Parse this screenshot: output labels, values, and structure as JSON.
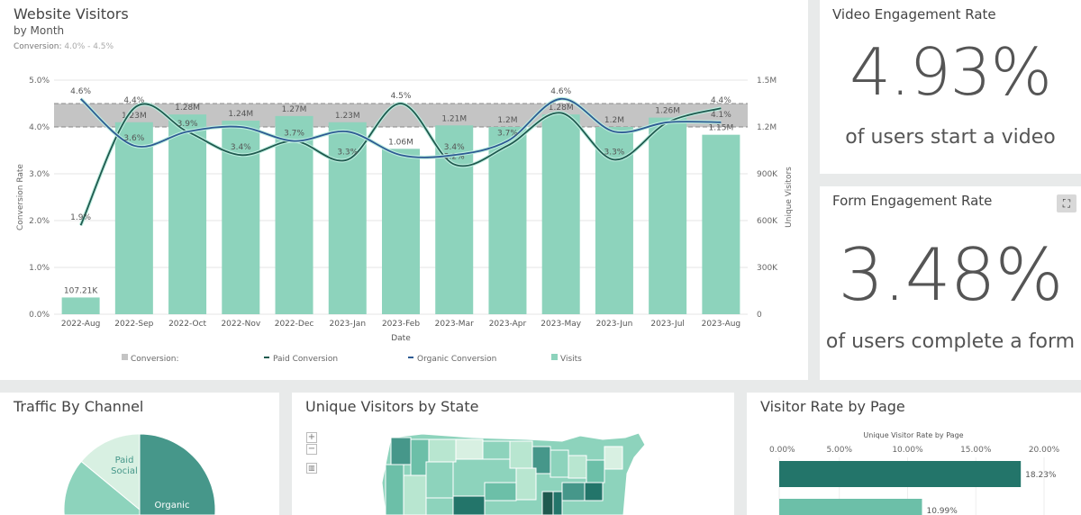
{
  "main": {
    "title": "Website Visitors",
    "subtitle": "by Month",
    "conversion_label": "Conversion:",
    "conversion_range": "4.0% - 4.5%"
  },
  "chart_data": {
    "type": "bar+line",
    "title": "Website Visitors",
    "xlabel": "Date",
    "ylabel_left": "Conversion Rate",
    "ylabel_right": "Unique Visitors",
    "categories": [
      "2022-Aug",
      "2022-Sep",
      "2022-Oct",
      "2022-Nov",
      "2022-Dec",
      "2023-Jan",
      "2023-Feb",
      "2023-Mar",
      "2023-Apr",
      "2023-May",
      "2023-Jun",
      "2023-Jul",
      "2023-Aug"
    ],
    "y_left_ticks": [
      "0.0%",
      "1.0%",
      "2.0%",
      "3.0%",
      "4.0%",
      "5.0%"
    ],
    "ylim_left": [
      0,
      5
    ],
    "y_right_ticks": [
      "0",
      "300K",
      "600K",
      "900K",
      "1.2M",
      "1.5M"
    ],
    "ylim_right": [
      0,
      1500000
    ],
    "band": {
      "name": "Conversion:",
      "range": [
        4.0,
        4.5
      ]
    },
    "visits": {
      "name": "Visits",
      "values": [
        107210,
        1230000,
        1280000,
        1240000,
        1270000,
        1230000,
        1060000,
        1210000,
        1200000,
        1280000,
        1200000,
        1260000,
        1150000
      ],
      "labels": [
        "107.21K",
        "1.23M",
        "1.28M",
        "1.24M",
        "1.27M",
        "1.23M",
        "1.06M",
        "1.21M",
        "1.2M",
        "1.28M",
        "1.2M",
        "1.26M",
        "1.15M"
      ]
    },
    "series": [
      {
        "name": "Paid Conversion",
        "color": "#1f5a4f",
        "values": [
          1.9,
          4.4,
          3.9,
          3.4,
          3.7,
          3.3,
          4.5,
          3.2,
          3.6,
          4.3,
          3.3,
          4.1,
          4.4
        ],
        "labels": [
          "1.9%",
          "4.4%",
          "",
          "3.4%",
          "",
          "3.3%",
          "4.5%",
          "3.2%",
          "",
          "",
          "3.3%",
          "",
          "4.4%"
        ]
      },
      {
        "name": "Organic Conversion",
        "color": "#2d5b93",
        "values": [
          4.6,
          3.6,
          3.9,
          4.0,
          3.7,
          3.9,
          3.4,
          3.4,
          3.7,
          4.6,
          3.9,
          4.1,
          4.1
        ],
        "labels": [
          "4.6%",
          "3.6%",
          "3.9%",
          "",
          "3.7%",
          "",
          "",
          "3.4%",
          "3.7%",
          "4.6%",
          "",
          "",
          "4.1%"
        ]
      }
    ],
    "legend": [
      "Conversion:",
      "Paid Conversion",
      "Organic Conversion",
      "Visits"
    ],
    "colors": {
      "bar": "#8dd3bc",
      "band": "#c4c4c4"
    }
  },
  "video": {
    "title": "Video Engagement Rate",
    "value": "4.93%",
    "caption": "of users start a video"
  },
  "form": {
    "title": "Form Engagement Rate",
    "value": "3.48%",
    "caption": "of users complete a form"
  },
  "traffic": {
    "title": "Traffic By Channel",
    "slices": [
      {
        "label": "Organic",
        "value": 50,
        "color": "#46978a"
      },
      {
        "label": "",
        "value": 36,
        "color": "#8dd3bc"
      },
      {
        "label": "Paid Social",
        "value": 14,
        "color": "#d8f0e2"
      }
    ]
  },
  "states": {
    "title": "Unique Visitors by State",
    "zoom_in": "+",
    "zoom_out": "−"
  },
  "pages": {
    "title": "Visitor Rate by Page",
    "chart_title": "Unique Visitor Rate by Page",
    "ticks": [
      "0.00%",
      "5.00%",
      "10.00%",
      "15.00%",
      "20.00%"
    ],
    "bars": [
      {
        "value": 18.23,
        "label": "18.23%",
        "color": "#23756a"
      },
      {
        "value": 10.99,
        "label": "10.99%",
        "color": "#6cbfa8"
      }
    ]
  }
}
